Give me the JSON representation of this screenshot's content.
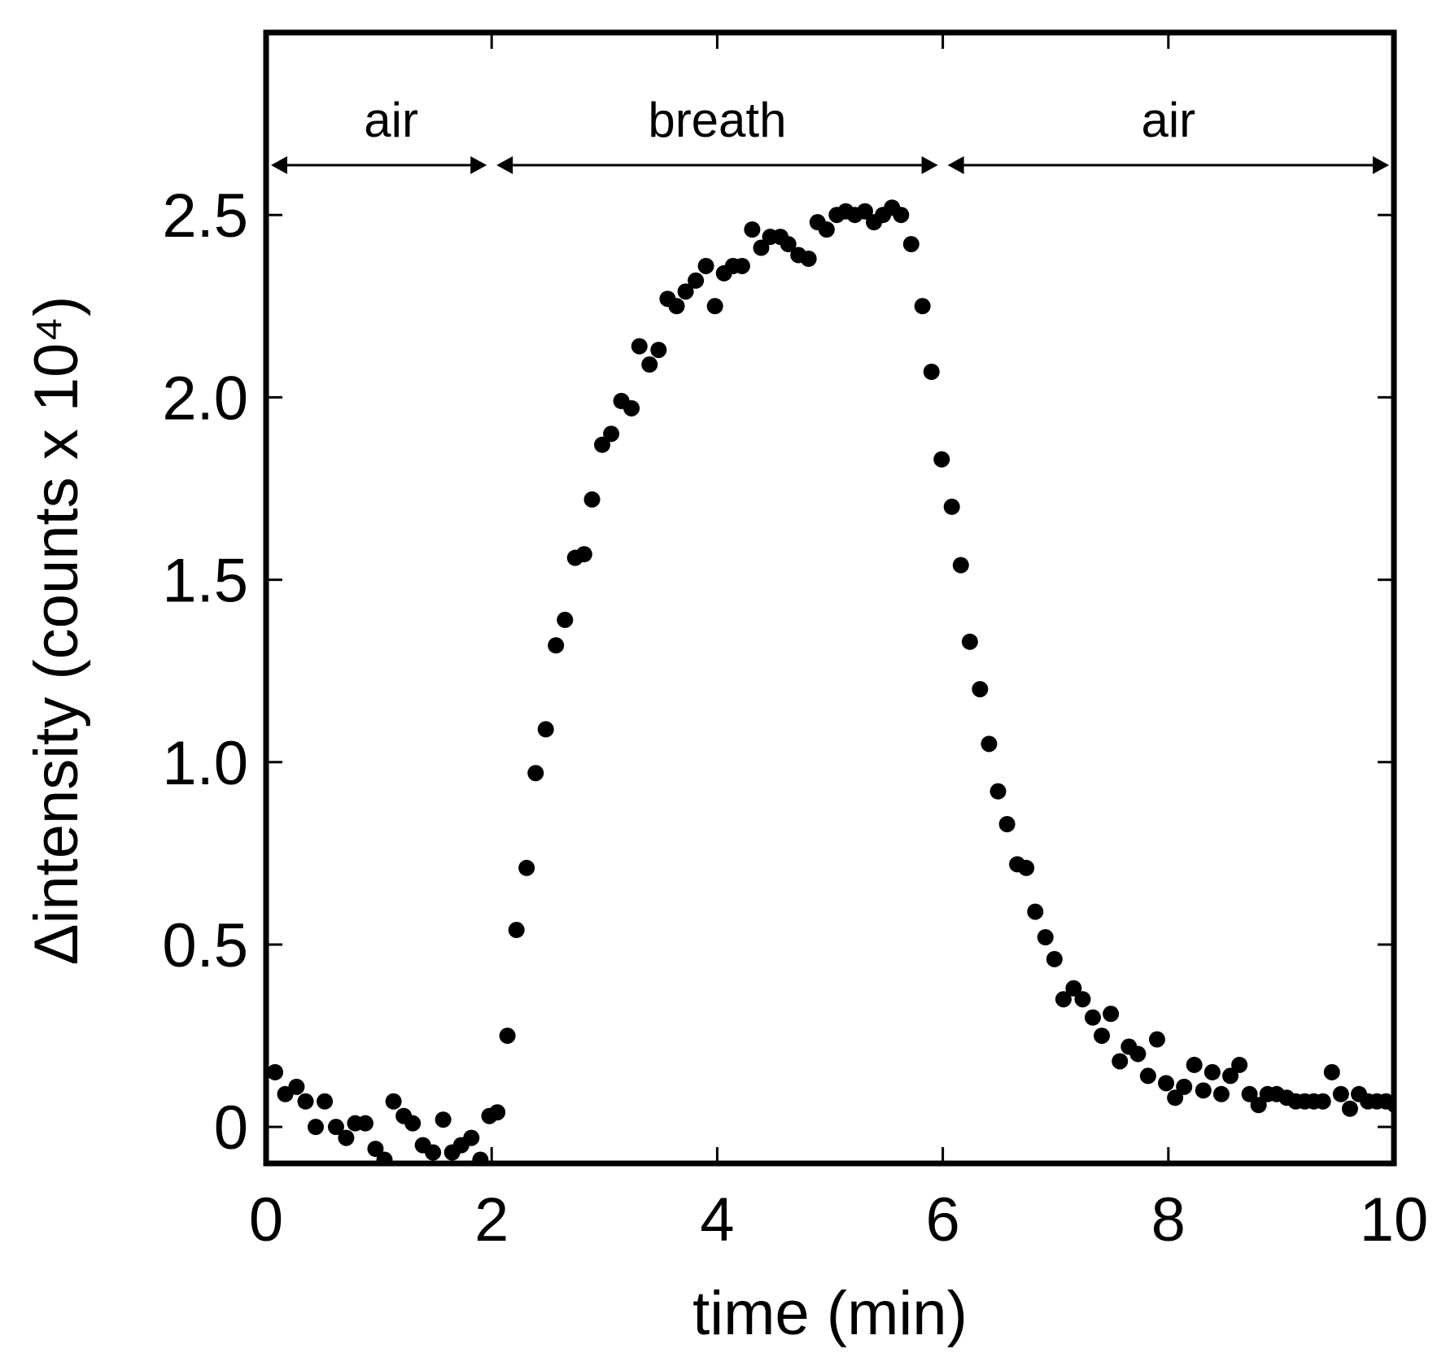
{
  "chart_data": {
    "type": "scatter",
    "title": "",
    "xlabel": "time (min)",
    "ylabel": "Δintensity (counts x 10⁴)",
    "xlim": [
      0,
      10
    ],
    "ylim": [
      -0.1,
      3.0
    ],
    "xticks": [
      0,
      2,
      4,
      6,
      8,
      10
    ],
    "xtick_labels": [
      "0",
      "2",
      "4",
      "6",
      "8",
      "10"
    ],
    "yticks": [
      0,
      0.5,
      1.0,
      1.5,
      2.0,
      2.5
    ],
    "ytick_labels": [
      "0",
      "0.5",
      "1.0",
      "1.5",
      "2.0",
      "2.5"
    ],
    "grid": false,
    "marker_color": "#000000",
    "regions": [
      {
        "label": "air",
        "start": 0,
        "end": 2
      },
      {
        "label": "breath",
        "start": 2,
        "end": 6
      },
      {
        "label": "air",
        "start": 6,
        "end": 10
      }
    ],
    "series": [
      {
        "x": [
          0.08,
          0.17,
          0.27,
          0.35,
          0.44,
          0.52,
          0.62,
          0.71,
          0.79,
          0.88,
          0.97,
          1.05,
          1.13,
          1.22,
          1.3,
          1.39,
          1.48,
          1.57,
          1.65,
          1.73,
          1.82,
          1.9,
          1.98,
          2.05,
          2.14,
          2.22,
          2.31,
          2.39,
          2.48,
          2.57,
          2.65,
          2.74,
          2.82,
          2.89,
          2.98,
          3.06,
          3.15,
          3.24,
          3.31,
          3.4,
          3.48,
          3.56,
          3.64,
          3.72,
          3.81,
          3.9,
          3.98,
          4.06,
          4.14,
          4.22,
          4.31,
          4.39,
          4.47,
          4.56,
          4.63,
          4.72,
          4.81,
          4.89,
          4.97,
          5.06,
          5.14,
          5.22,
          5.31,
          5.39,
          5.47,
          5.55,
          5.63,
          5.72,
          5.82,
          5.9,
          5.99,
          6.08,
          6.16,
          6.24,
          6.33,
          6.41,
          6.49,
          6.57,
          6.66,
          6.74,
          6.82,
          6.91,
          6.99,
          7.07,
          7.16,
          7.24,
          7.33,
          7.41,
          7.49,
          7.57,
          7.65,
          7.73,
          7.82,
          7.9,
          7.98,
          8.06,
          8.14,
          8.23,
          8.31,
          8.39,
          8.47,
          8.55,
          8.63,
          8.72,
          8.8,
          8.88,
          8.96,
          9.05,
          9.13,
          9.21,
          9.29,
          9.37,
          9.45,
          9.53,
          9.61,
          9.69,
          9.77,
          9.85,
          9.93,
          10.01
        ],
        "y": [
          0.15,
          0.09,
          0.11,
          0.07,
          0.0,
          0.07,
          0.0,
          -0.03,
          0.01,
          0.01,
          -0.06,
          -0.09,
          0.07,
          0.03,
          0.01,
          -0.05,
          -0.07,
          0.02,
          -0.07,
          -0.05,
          -0.03,
          -0.09,
          0.03,
          0.04,
          0.25,
          0.54,
          0.71,
          0.97,
          1.09,
          1.32,
          1.39,
          1.56,
          1.57,
          1.72,
          1.87,
          1.9,
          1.99,
          1.97,
          2.14,
          2.09,
          2.13,
          2.27,
          2.25,
          2.29,
          2.32,
          2.36,
          2.25,
          2.34,
          2.36,
          2.36,
          2.46,
          2.41,
          2.44,
          2.44,
          2.42,
          2.39,
          2.38,
          2.48,
          2.46,
          2.5,
          2.51,
          2.5,
          2.51,
          2.48,
          2.5,
          2.52,
          2.5,
          2.42,
          2.25,
          2.07,
          1.83,
          1.7,
          1.54,
          1.33,
          1.2,
          1.05,
          0.92,
          0.83,
          0.72,
          0.71,
          0.59,
          0.52,
          0.46,
          0.35,
          0.38,
          0.35,
          0.3,
          0.25,
          0.31,
          0.18,
          0.22,
          0.2,
          0.14,
          0.24,
          0.12,
          0.08,
          0.11,
          0.17,
          0.1,
          0.15,
          0.09,
          0.14,
          0.17,
          0.09,
          0.06,
          0.09,
          0.09,
          0.08,
          0.07,
          0.07,
          0.07,
          0.07,
          0.15,
          0.09,
          0.05,
          0.09,
          0.07,
          0.07,
          0.07,
          0.06
        ]
      }
    ]
  }
}
